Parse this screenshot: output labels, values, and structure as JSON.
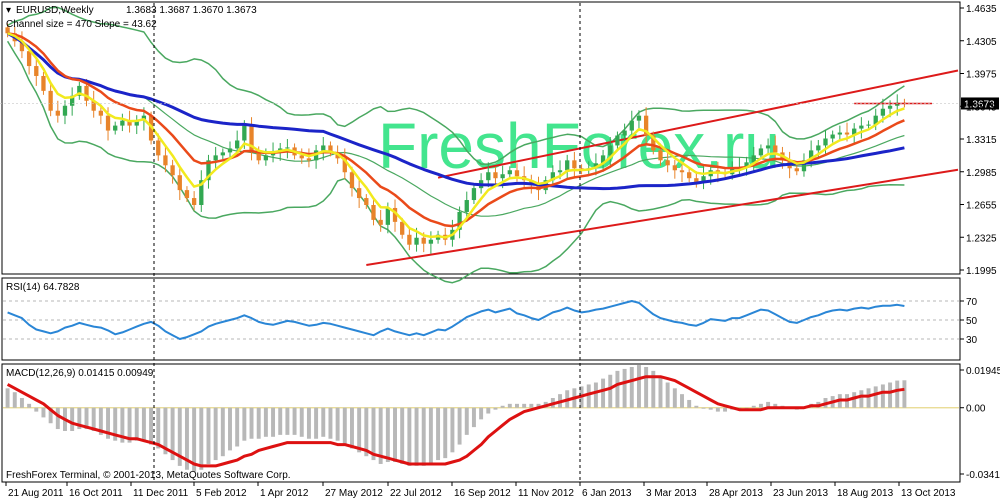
{
  "header": {
    "symbol": "EURUSD,Weekly",
    "ohlc": "1.3683 1.3687 1.3670 1.3673",
    "channel_info": "Channel size = 470 Slope = 43.62"
  },
  "watermark": "FreshForex.ru",
  "footer": "FreshForex Terminal, © 2001-2013, MetaQuotes Software Corp.",
  "colors": {
    "bull": "#32a852",
    "bear": "#e8842a",
    "ma_fast": "#f2ea1e",
    "ma_mid": "#ea4a1a",
    "ma_slow": "#1b24c8",
    "bands": "#4aa860",
    "channel": "#dd1a1a",
    "rsi": "#2a86d6",
    "macd_signal": "#dd1111",
    "macd_hist": "#b8b8b8",
    "watermark": "#22e07a"
  },
  "chart_data": [
    {
      "type": "candlestick",
      "title": "EURUSD,Weekly",
      "current_price_label": "1.3673",
      "y_ticks": [
        "1.4635",
        "1.4305",
        "1.3975",
        "1.3645",
        "1.3315",
        "1.2985",
        "1.2655",
        "1.2325",
        "1.1995"
      ],
      "ylim": [
        1.1995,
        1.4635
      ],
      "x_ticks": [
        "21 Aug 2011",
        "16 Oct 2011",
        "11 Dec 2011",
        "5 Feb 2012",
        "1 Apr 2012",
        "27 May 2012",
        "22 Jul 2012",
        "16 Sep 2012",
        "11 Nov 2012",
        "6 Jan 2013",
        "3 Mar 2013",
        "28 Apr 2013",
        "23 Jun 2013",
        "18 Aug 2013",
        "13 Oct 2013"
      ],
      "close": [
        1.438,
        1.43,
        1.42,
        1.405,
        1.395,
        1.38,
        1.36,
        1.355,
        1.365,
        1.375,
        1.385,
        1.37,
        1.36,
        1.355,
        1.34,
        1.345,
        1.35,
        1.345,
        1.35,
        1.355,
        1.33,
        1.315,
        1.305,
        1.295,
        1.28,
        1.272,
        1.265,
        1.29,
        1.31,
        1.315,
        1.318,
        1.322,
        1.33,
        1.345,
        1.32,
        1.31,
        1.315,
        1.318,
        1.322,
        1.323,
        1.315,
        1.312,
        1.31,
        1.32,
        1.325,
        1.318,
        1.312,
        1.298,
        1.282,
        1.272,
        1.265,
        1.25,
        1.245,
        1.262,
        1.248,
        1.235,
        1.225,
        1.232,
        1.226,
        1.23,
        1.235,
        1.23,
        1.24,
        1.258,
        1.27,
        1.282,
        1.29,
        1.298,
        1.292,
        1.296,
        1.3,
        1.294,
        1.29,
        1.285,
        1.28,
        1.29,
        1.298,
        1.3,
        1.31,
        1.302,
        1.3,
        1.302,
        1.307,
        1.315,
        1.325,
        1.335,
        1.34,
        1.35,
        1.355,
        1.335,
        1.32,
        1.31,
        1.305,
        1.3,
        1.298,
        1.292,
        1.288,
        1.294,
        1.3,
        1.298,
        1.296,
        1.302,
        1.303,
        1.308,
        1.315,
        1.322,
        1.325,
        1.318,
        1.31,
        1.302,
        1.299,
        1.31,
        1.32,
        1.325,
        1.332,
        1.336,
        1.338,
        1.336,
        1.342,
        1.345,
        1.346,
        1.355,
        1.362,
        1.365,
        1.368,
        1.3673
      ],
      "series": [
        {
          "name": "RSI(14)",
          "values": []
        }
      ]
    },
    {
      "type": "line",
      "title": "RSI(14) 64.7828",
      "y_ticks": [
        "70",
        "50",
        "30"
      ],
      "levels": [
        70,
        50,
        30
      ],
      "ylim": [
        10,
        90
      ],
      "rsi": [
        58,
        55,
        52,
        45,
        40,
        38,
        36,
        38,
        42,
        44,
        47,
        45,
        43,
        42,
        39,
        35,
        37,
        40,
        43,
        46,
        48,
        44,
        38,
        34,
        30,
        32,
        35,
        38,
        43,
        46,
        48,
        50,
        52,
        55,
        52,
        48,
        46,
        45,
        47,
        49,
        48,
        46,
        44,
        45,
        47,
        46,
        44,
        42,
        40,
        38,
        36,
        34,
        38,
        41,
        38,
        36,
        34,
        36,
        34,
        37,
        40,
        39,
        43,
        48,
        53,
        56,
        59,
        61,
        58,
        60,
        62,
        57,
        55,
        52,
        50,
        54,
        58,
        60,
        63,
        60,
        58,
        59,
        61,
        62,
        64,
        66,
        68,
        70,
        68,
        62,
        56,
        52,
        50,
        48,
        47,
        45,
        44,
        47,
        51,
        50,
        49,
        52,
        52,
        55,
        58,
        61,
        60,
        56,
        52,
        48,
        47,
        50,
        53,
        55,
        58,
        60,
        61,
        60,
        62,
        63,
        62,
        64,
        65,
        65,
        66,
        64.7828
      ]
    },
    {
      "type": "bar",
      "title": "MACD(12,26,9) 0.01415 0.00949",
      "y_ticks": [
        "0.01945",
        "0.00",
        "-0.03418"
      ],
      "ylim": [
        -0.03418,
        0.01945
      ],
      "histogram": [
        0.01,
        0.008,
        0.005,
        0.002,
        -0.002,
        -0.005,
        -0.008,
        -0.011,
        -0.012,
        -0.012,
        -0.011,
        -0.011,
        -0.012,
        -0.014,
        -0.016,
        -0.017,
        -0.018,
        -0.018,
        -0.017,
        -0.017,
        -0.019,
        -0.021,
        -0.024,
        -0.027,
        -0.03,
        -0.032,
        -0.033,
        -0.032,
        -0.029,
        -0.027,
        -0.025,
        -0.022,
        -0.02,
        -0.017,
        -0.016,
        -0.016,
        -0.015,
        -0.015,
        -0.014,
        -0.014,
        -0.014,
        -0.015,
        -0.016,
        -0.016,
        -0.015,
        -0.016,
        -0.017,
        -0.019,
        -0.021,
        -0.023,
        -0.025,
        -0.027,
        -0.029,
        -0.028,
        -0.028,
        -0.029,
        -0.03,
        -0.03,
        -0.03,
        -0.029,
        -0.027,
        -0.026,
        -0.023,
        -0.019,
        -0.014,
        -0.01,
        -0.006,
        -0.003,
        -0.001,
        0.001,
        0.002,
        0.002,
        0.002,
        0.002,
        0.002,
        0.003,
        0.005,
        0.007,
        0.009,
        0.01,
        0.011,
        0.012,
        0.013,
        0.015,
        0.017,
        0.019,
        0.02,
        0.021,
        0.022,
        0.021,
        0.019,
        0.016,
        0.013,
        0.01,
        0.007,
        0.004,
        0.001,
        0.0,
        -0.001,
        -0.002,
        -0.002,
        -0.001,
        -0.001,
        0.0,
        0.001,
        0.002,
        0.003,
        0.002,
        0.001,
        0.0,
        -0.001,
        0.0,
        0.002,
        0.003,
        0.005,
        0.006,
        0.007,
        0.007,
        0.008,
        0.009,
        0.01,
        0.011,
        0.012,
        0.013,
        0.014,
        0.01415
      ],
      "signal": [
        0.012,
        0.01,
        0.008,
        0.006,
        0.004,
        0.002,
        -0.001,
        -0.004,
        -0.006,
        -0.008,
        -0.009,
        -0.01,
        -0.011,
        -0.012,
        -0.013,
        -0.014,
        -0.015,
        -0.016,
        -0.016,
        -0.017,
        -0.018,
        -0.019,
        -0.021,
        -0.023,
        -0.025,
        -0.027,
        -0.029,
        -0.03,
        -0.03,
        -0.03,
        -0.029,
        -0.028,
        -0.027,
        -0.025,
        -0.024,
        -0.022,
        -0.021,
        -0.02,
        -0.019,
        -0.018,
        -0.018,
        -0.018,
        -0.018,
        -0.018,
        -0.018,
        -0.018,
        -0.019,
        -0.019,
        -0.02,
        -0.021,
        -0.022,
        -0.024,
        -0.025,
        -0.026,
        -0.027,
        -0.028,
        -0.029,
        -0.029,
        -0.029,
        -0.029,
        -0.029,
        -0.029,
        -0.028,
        -0.027,
        -0.025,
        -0.022,
        -0.019,
        -0.015,
        -0.012,
        -0.009,
        -0.006,
        -0.004,
        -0.002,
        -0.001,
        0.0,
        0.001,
        0.002,
        0.003,
        0.004,
        0.005,
        0.006,
        0.007,
        0.008,
        0.009,
        0.01,
        0.012,
        0.013,
        0.014,
        0.015,
        0.016,
        0.016,
        0.016,
        0.015,
        0.014,
        0.012,
        0.01,
        0.008,
        0.006,
        0.004,
        0.002,
        0.001,
        0.0,
        -0.001,
        -0.001,
        -0.001,
        -0.001,
        0.0,
        0.0,
        0.0,
        0.0,
        0.0,
        0.0,
        0.001,
        0.001,
        0.002,
        0.003,
        0.004,
        0.004,
        0.005,
        0.006,
        0.006,
        0.007,
        0.008,
        0.008,
        0.009,
        0.00949
      ]
    }
  ]
}
